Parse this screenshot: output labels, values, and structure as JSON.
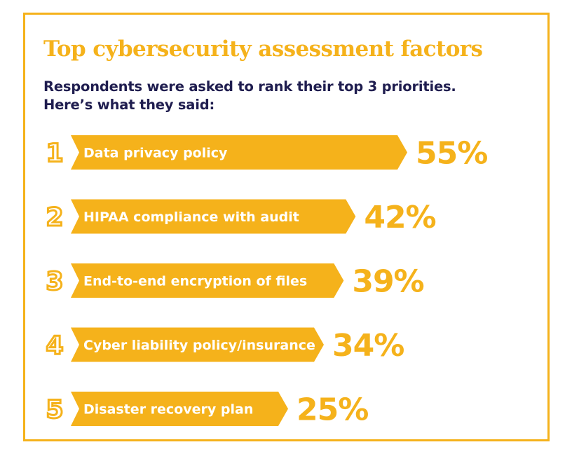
{
  "colors": {
    "accent": "#f5b21b",
    "text_dark": "#1f1d4f",
    "bar_text": "#ffffff"
  },
  "chart_data": {
    "type": "bar",
    "orientation": "horizontal",
    "title": "Top cybersecurity assessment factors",
    "subtitle": "Respondents were asked to rank their top 3 priorities. Here’s what they said:",
    "value_unit": "%",
    "xlim": [
      0,
      55
    ],
    "items": [
      {
        "rank": "1",
        "category": "Data privacy policy",
        "value": 55,
        "value_label": "55%"
      },
      {
        "rank": "2",
        "category": "HIPAA compliance with audit",
        "value": 42,
        "value_label": "42%"
      },
      {
        "rank": "3",
        "category": "End-to-end encryption of files",
        "value": 39,
        "value_label": "39%"
      },
      {
        "rank": "4",
        "category": "Cyber liability policy/insurance",
        "value": 34,
        "value_label": "34%"
      },
      {
        "rank": "5",
        "category": "Disaster recovery plan",
        "value": 25,
        "value_label": "25%"
      }
    ]
  }
}
